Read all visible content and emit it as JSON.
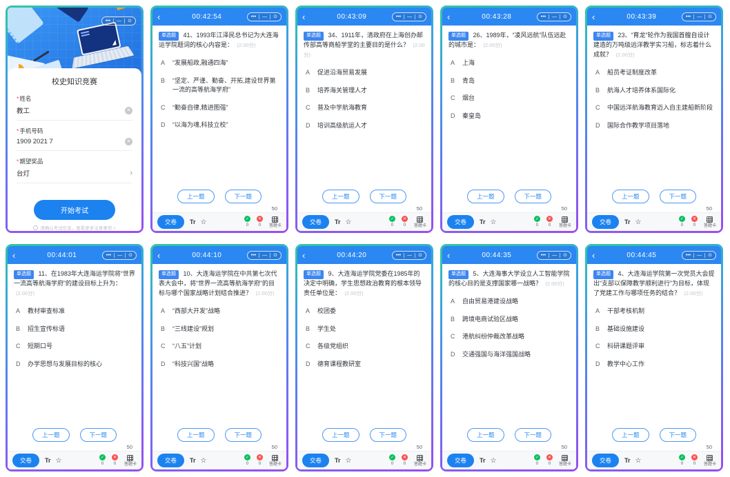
{
  "colors": {
    "header_blue": "#2b87f2",
    "accent_blue": "#1b82f0",
    "badge_blue": "#3c86f0",
    "success_green": "#07c160",
    "danger_red": "#fa5151",
    "frame_gradient_top": "#2fc7a2",
    "frame_gradient_bottom": "#9a4df0"
  },
  "capsule": {
    "more": "•••",
    "minimize": "—",
    "close": "⊙"
  },
  "intro": {
    "title": "校史知识竞赛",
    "required_mark": "*",
    "fields": [
      {
        "label": "姓名",
        "value": "教工"
      },
      {
        "label": "手机号码",
        "value": "1909 2021 7"
      },
      {
        "label": "期望奖品",
        "value": "台灯"
      }
    ],
    "clear_icon": "✕",
    "chevron": "›",
    "submit_label": "开始考试",
    "footer_note": "请确认考试信息，查看更多注意事项 >"
  },
  "quiz_common": {
    "back": "‹",
    "badge": "单选题",
    "score": "(2.00分)",
    "prev_label": "上一题",
    "next_label": "下一题",
    "total": "50",
    "submit_label": "交卷",
    "font_tool": "Tr",
    "star": "☆",
    "check_icon": "✓",
    "cross_icon": "✕",
    "answered_count": "0",
    "unanswered_count": "0",
    "answer_card_label": "答题卡"
  },
  "quizzes": [
    {
      "time": "00:42:54",
      "question": "41、1993年江泽民总书记为大连海运学院题词的核心内容是：",
      "options": [
        {
          "letter": "A",
          "text": "“发展船政,融通四海”"
        },
        {
          "letter": "B",
          "text": "“坚定、严谨、勤奋、开拓,建设世界第一流的高等航海学府”"
        },
        {
          "letter": "C",
          "text": "“勤奋自律,精进图强”"
        },
        {
          "letter": "D",
          "text": "“以海为魂,科技立校”"
        }
      ]
    },
    {
      "time": "00:43:09",
      "question": "34、1911年，清政府在上海创办邮传部高等商船学堂的主要目的是什么？",
      "options": [
        {
          "letter": "A",
          "text": "促进沿海贸易发展"
        },
        {
          "letter": "B",
          "text": "培养海关管理人才"
        },
        {
          "letter": "C",
          "text": "普及中学航海教育"
        },
        {
          "letter": "D",
          "text": "培训高级航运人才"
        }
      ]
    },
    {
      "time": "00:43:28",
      "question": "26、1989年，“凌风远航”队伍远赴的城市是：",
      "options": [
        {
          "letter": "A",
          "text": "上海"
        },
        {
          "letter": "B",
          "text": "青岛"
        },
        {
          "letter": "C",
          "text": "烟台"
        },
        {
          "letter": "D",
          "text": "秦皇岛"
        }
      ]
    },
    {
      "time": "00:43:39",
      "question": "23、“育龙”轮作为我国首艘自设计建造的万吨级远洋教学实习船，标志着什么成就？",
      "options": [
        {
          "letter": "A",
          "text": "船员考证制度改革"
        },
        {
          "letter": "B",
          "text": "航海人才培养体系国际化"
        },
        {
          "letter": "C",
          "text": "中国远洋航海教育迈入自主建船新阶段"
        },
        {
          "letter": "D",
          "text": "国际合作教学项目落地"
        }
      ]
    },
    {
      "time": "00:44:01",
      "question": "11、在1983年大连海运学院将“世界一流高等航海学府”的建设目标上升为：",
      "options": [
        {
          "letter": "A",
          "text": "教材审查标准"
        },
        {
          "letter": "B",
          "text": "招生宣传标语"
        },
        {
          "letter": "C",
          "text": "短期口号"
        },
        {
          "letter": "D",
          "text": "办学思想与发展目标的核心"
        }
      ]
    },
    {
      "time": "00:44:10",
      "question": "10、大连海运学院在中共第七次代表大会中，将“世界一流高等航海学府”的目标与哪个国家战略计划结合推进？",
      "options": [
        {
          "letter": "A",
          "text": "“西部大开发”战略"
        },
        {
          "letter": "B",
          "text": "“三线建设”规划"
        },
        {
          "letter": "C",
          "text": "“八五”计划"
        },
        {
          "letter": "D",
          "text": "“科技兴国”战略"
        }
      ]
    },
    {
      "time": "00:44:20",
      "question": "9、大连海运学院党委在1985年的决定中明确，学生思想政治教育的根本领导责任单位是：",
      "options": [
        {
          "letter": "A",
          "text": "校团委"
        },
        {
          "letter": "B",
          "text": "学生处"
        },
        {
          "letter": "C",
          "text": "各级党组织"
        },
        {
          "letter": "D",
          "text": "德育课程教研室"
        }
      ]
    },
    {
      "time": "00:44:35",
      "question": "5、大连海事大学设立人工智能学院的核心目的是支撑国家哪一战略？",
      "options": [
        {
          "letter": "A",
          "text": "自由贸易港建设战略"
        },
        {
          "letter": "B",
          "text": "跨境电商试验区战略"
        },
        {
          "letter": "C",
          "text": "港航纠纷仲裁改革战略"
        },
        {
          "letter": "D",
          "text": "交通强国与海洋强国战略"
        }
      ]
    },
    {
      "time": "00:44:45",
      "question": "4、大连海运学院第一次党员大会提出“支部以保障教学顺利进行”为目标，体现了党建工作与哪项任务的结合？",
      "options": [
        {
          "letter": "A",
          "text": "干部考核机制"
        },
        {
          "letter": "B",
          "text": "基础设施建设"
        },
        {
          "letter": "C",
          "text": "科研课题评审"
        },
        {
          "letter": "D",
          "text": "教学中心工作"
        }
      ]
    }
  ]
}
